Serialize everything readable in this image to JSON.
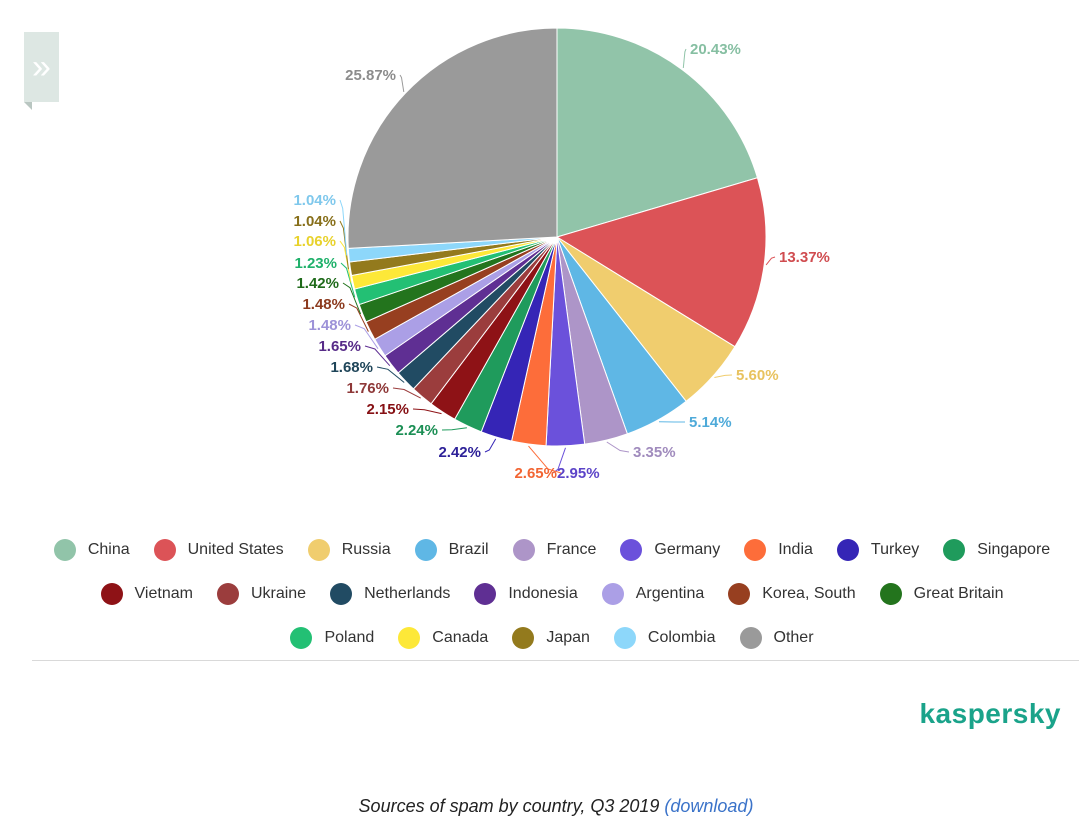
{
  "page": {
    "expand_glyph": "»",
    "brand": "kaspersky",
    "caption": "Sources of spam by country, Q3 2019",
    "download_label": "(download)"
  },
  "chart_data": {
    "type": "pie",
    "title": "",
    "legend_position": "bottom",
    "slices": [
      {
        "label": "China",
        "value": 20.43,
        "color": "#91c4a9"
      },
      {
        "label": "United States",
        "value": 13.37,
        "color": "#dc5357"
      },
      {
        "label": "Russia",
        "value": 5.6,
        "color": "#f0cd6e"
      },
      {
        "label": "Brazil",
        "value": 5.14,
        "color": "#5fb7e5"
      },
      {
        "label": "France",
        "value": 3.35,
        "color": "#ad95c8"
      },
      {
        "label": "Germany",
        "value": 2.95,
        "color": "#6b51db"
      },
      {
        "label": "India",
        "value": 2.65,
        "color": "#fd6d3a"
      },
      {
        "label": "Turkey",
        "value": 2.42,
        "color": "#3525b6"
      },
      {
        "label": "Singapore",
        "value": 2.24,
        "color": "#1f9b5c"
      },
      {
        "label": "Vietnam",
        "value": 2.15,
        "color": "#8e1216"
      },
      {
        "label": "Ukraine",
        "value": 1.76,
        "color": "#9b3d3d"
      },
      {
        "label": "Netherlands",
        "value": 1.68,
        "color": "#214b63"
      },
      {
        "label": "Indonesia",
        "value": 1.65,
        "color": "#5f2f93"
      },
      {
        "label": "Argentina",
        "value": 1.48,
        "color": "#ab9fe6"
      },
      {
        "label": "Korea, South",
        "value": 1.48,
        "color": "#973f20"
      },
      {
        "label": "Great Britain",
        "value": 1.42,
        "color": "#23741d"
      },
      {
        "label": "Poland",
        "value": 1.23,
        "color": "#23c074"
      },
      {
        "label": "Canada",
        "value": 1.06,
        "color": "#fde838"
      },
      {
        "label": "Japan",
        "value": 1.04,
        "color": "#937a1d"
      },
      {
        "label": "Colombia",
        "value": 1.04,
        "color": "#8dd7fa"
      },
      {
        "label": "Other",
        "value": 25.87,
        "color": "#9a9a9a"
      }
    ],
    "value_labels": [
      "20.43%",
      "13.37%",
      "5.60%",
      "5.14%",
      "3.35%",
      "2.95%",
      "2.65%",
      "2.42%",
      "2.24%",
      "2.15%",
      "1.76%",
      "1.68%",
      "1.65%",
      "1.48%",
      "1.48%",
      "1.42%",
      "1.23%",
      "1.06%",
      "1.04%",
      "1.04%",
      "25.87%"
    ],
    "label_colors": [
      "#86bfa2",
      "#d04c50",
      "#e8c25e",
      "#4eaad9",
      "#a08bbd",
      "#5c44c8",
      "#f26533",
      "#2e2299",
      "#1c8f55",
      "#861014",
      "#8e3838",
      "#1f4559",
      "#572b88",
      "#9d92d8",
      "#8c3a1e",
      "#206b1b",
      "#20b16b",
      "#e8d22c",
      "#876f1a",
      "#7fc8ec",
      "#8c8c8c"
    ]
  }
}
